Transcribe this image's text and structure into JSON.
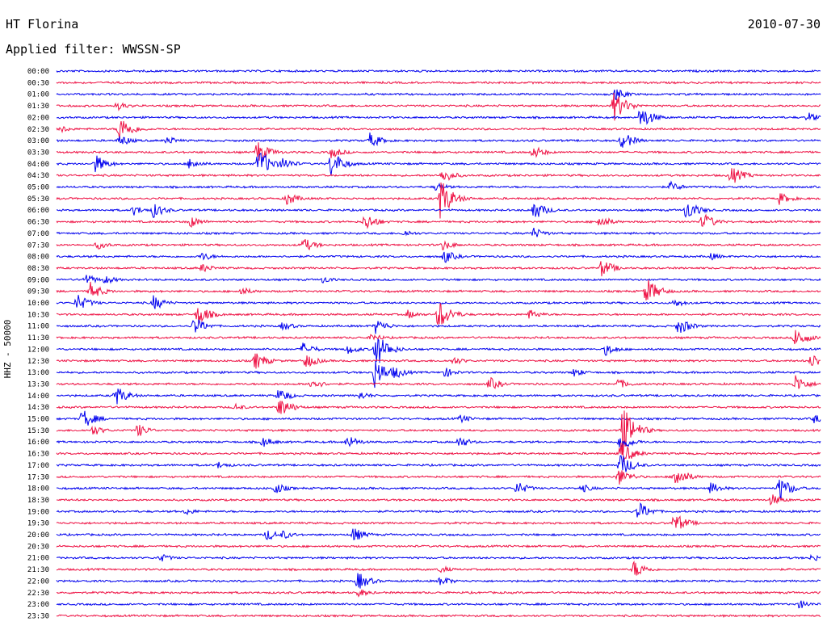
{
  "header": {
    "station": "HT Florina",
    "date": "2010-07-30",
    "filter_label": "Applied filter: WWSSN-SP"
  },
  "side_label": "HHZ - 50000",
  "chart_data": {
    "type": "line",
    "subtype": "helicorder",
    "colors": [
      "#0000ee",
      "#ee1144"
    ],
    "rows": [
      {
        "time": "00:00",
        "color": "#0000ee",
        "events": []
      },
      {
        "time": "00:30",
        "color": "#ee1144",
        "events": []
      },
      {
        "time": "01:00",
        "color": "#0000ee",
        "events": [
          [
            762,
            8
          ]
        ]
      },
      {
        "time": "01:30",
        "color": "#ee1144",
        "events": [
          [
            760,
            20
          ],
          [
            145,
            6
          ]
        ]
      },
      {
        "time": "02:00",
        "color": "#0000ee",
        "events": [
          [
            793,
            16
          ],
          [
            1000,
            7
          ]
        ]
      },
      {
        "time": "02:30",
        "color": "#ee1144",
        "events": [
          [
            148,
            18
          ],
          [
            75,
            5
          ]
        ]
      },
      {
        "time": "03:00",
        "color": "#0000ee",
        "events": [
          [
            770,
            12
          ],
          [
            458,
            10
          ],
          [
            148,
            8
          ],
          [
            207,
            6
          ]
        ]
      },
      {
        "time": "03:30",
        "color": "#ee1144",
        "events": [
          [
            318,
            16
          ],
          [
            660,
            9
          ],
          [
            410,
            8
          ]
        ]
      },
      {
        "time": "04:00",
        "color": "#0000ee",
        "events": [
          [
            320,
            20
          ],
          [
            410,
            18
          ],
          [
            118,
            12
          ],
          [
            235,
            8
          ],
          [
            350,
            9
          ]
        ]
      },
      {
        "time": "04:30",
        "color": "#ee1144",
        "events": [
          [
            905,
            13
          ],
          [
            548,
            10
          ]
        ]
      },
      {
        "time": "05:00",
        "color": "#0000ee",
        "events": [
          [
            830,
            7
          ],
          [
            540,
            6
          ]
        ]
      },
      {
        "time": "05:30",
        "color": "#ee1144",
        "events": [
          [
            545,
            26
          ],
          [
            355,
            9
          ],
          [
            965,
            8
          ]
        ]
      },
      {
        "time": "06:00",
        "color": "#0000ee",
        "events": [
          [
            660,
            14
          ],
          [
            850,
            14
          ],
          [
            190,
            10
          ],
          [
            165,
            7
          ]
        ]
      },
      {
        "time": "06:30",
        "color": "#ee1144",
        "events": [
          [
            452,
            12
          ],
          [
            870,
            12
          ],
          [
            742,
            9
          ],
          [
            235,
            8
          ]
        ]
      },
      {
        "time": "07:00",
        "color": "#0000ee",
        "events": [
          [
            660,
            8
          ],
          [
            500,
            5
          ]
        ]
      },
      {
        "time": "07:30",
        "color": "#ee1144",
        "events": [
          [
            375,
            10
          ],
          [
            548,
            7
          ],
          [
            120,
            6
          ]
        ]
      },
      {
        "time": "08:00",
        "color": "#0000ee",
        "events": [
          [
            550,
            9
          ],
          [
            250,
            6
          ],
          [
            880,
            5
          ]
        ]
      },
      {
        "time": "08:30",
        "color": "#ee1144",
        "events": [
          [
            745,
            12
          ],
          [
            250,
            6
          ]
        ]
      },
      {
        "time": "09:00",
        "color": "#0000ee",
        "events": [
          [
            105,
            8
          ],
          [
            130,
            6
          ],
          [
            400,
            5
          ]
        ]
      },
      {
        "time": "09:30",
        "color": "#ee1144",
        "events": [
          [
            800,
            18
          ],
          [
            112,
            12
          ],
          [
            298,
            6
          ]
        ]
      },
      {
        "time": "10:00",
        "color": "#0000ee",
        "events": [
          [
            95,
            12
          ],
          [
            190,
            10
          ],
          [
            835,
            6
          ]
        ]
      },
      {
        "time": "10:30",
        "color": "#ee1144",
        "events": [
          [
            543,
            20
          ],
          [
            245,
            14
          ],
          [
            655,
            7
          ],
          [
            505,
            6
          ]
        ]
      },
      {
        "time": "11:00",
        "color": "#0000ee",
        "events": [
          [
            840,
            12
          ],
          [
            240,
            12
          ],
          [
            465,
            10
          ],
          [
            350,
            6
          ]
        ]
      },
      {
        "time": "11:30",
        "color": "#ee1144",
        "events": [
          [
            985,
            14
          ],
          [
            460,
            6
          ]
        ]
      },
      {
        "time": "12:00",
        "color": "#0000ee",
        "events": [
          [
            465,
            24
          ],
          [
            375,
            9
          ],
          [
            430,
            7
          ],
          [
            750,
            8
          ]
        ]
      },
      {
        "time": "12:30",
        "color": "#ee1144",
        "events": [
          [
            378,
            10
          ],
          [
            316,
            12
          ],
          [
            1005,
            10
          ],
          [
            560,
            6
          ]
        ]
      },
      {
        "time": "13:00",
        "color": "#0000ee",
        "events": [
          [
            464,
            20
          ],
          [
            488,
            9
          ],
          [
            550,
            7
          ],
          [
            710,
            6
          ]
        ]
      },
      {
        "time": "13:30",
        "color": "#ee1144",
        "events": [
          [
            985,
            12
          ],
          [
            606,
            9
          ],
          [
            385,
            8
          ],
          [
            765,
            7
          ]
        ]
      },
      {
        "time": "14:00",
        "color": "#0000ee",
        "events": [
          [
            143,
            13
          ],
          [
            345,
            10
          ],
          [
            445,
            6
          ]
        ]
      },
      {
        "time": "14:30",
        "color": "#ee1144",
        "events": [
          [
            346,
            14
          ],
          [
            290,
            5
          ]
        ]
      },
      {
        "time": "15:00",
        "color": "#0000ee",
        "events": [
          [
            102,
            14
          ],
          [
            570,
            6
          ],
          [
            1008,
            6
          ]
        ]
      },
      {
        "time": "15:30",
        "color": "#ee1144",
        "events": [
          [
            770,
            34
          ],
          [
            170,
            9
          ],
          [
            115,
            7
          ]
        ]
      },
      {
        "time": "16:00",
        "color": "#0000ee",
        "events": [
          [
            430,
            9
          ],
          [
            325,
            7
          ],
          [
            568,
            8
          ],
          [
            768,
            12
          ]
        ]
      },
      {
        "time": "16:30",
        "color": "#ee1144",
        "events": [
          [
            769,
            16
          ]
        ]
      },
      {
        "time": "17:00",
        "color": "#0000ee",
        "events": [
          [
            768,
            16
          ],
          [
            270,
            5
          ]
        ]
      },
      {
        "time": "17:30",
        "color": "#ee1144",
        "events": [
          [
            835,
            16
          ],
          [
            766,
            12
          ]
        ]
      },
      {
        "time": "18:00",
        "color": "#0000ee",
        "events": [
          [
            965,
            16
          ],
          [
            640,
            9
          ],
          [
            340,
            8
          ],
          [
            880,
            8
          ],
          [
            720,
            6
          ]
        ]
      },
      {
        "time": "18:30",
        "color": "#ee1144",
        "events": [
          [
            955,
            8
          ]
        ]
      },
      {
        "time": "19:00",
        "color": "#0000ee",
        "events": [
          [
            790,
            13
          ],
          [
            230,
            5
          ]
        ]
      },
      {
        "time": "19:30",
        "color": "#ee1144",
        "events": [
          [
            835,
            14
          ]
        ]
      },
      {
        "time": "20:00",
        "color": "#0000ee",
        "events": [
          [
            437,
            10
          ],
          [
            330,
            8
          ],
          [
            350,
            6
          ]
        ]
      },
      {
        "time": "20:30",
        "color": "#ee1144",
        "events": []
      },
      {
        "time": "21:00",
        "color": "#0000ee",
        "events": [
          [
            198,
            6
          ],
          [
            1005,
            5
          ]
        ]
      },
      {
        "time": "21:30",
        "color": "#ee1144",
        "events": [
          [
            785,
            12
          ],
          [
            545,
            5
          ]
        ]
      },
      {
        "time": "22:00",
        "color": "#0000ee",
        "events": [
          [
            443,
            12
          ],
          [
            545,
            7
          ]
        ]
      },
      {
        "time": "22:30",
        "color": "#ee1144",
        "events": [
          [
            443,
            6
          ]
        ]
      },
      {
        "time": "23:00",
        "color": "#0000ee",
        "events": [
          [
            990,
            6
          ]
        ]
      },
      {
        "time": "23:30",
        "color": "#ee1144",
        "events": []
      }
    ]
  }
}
